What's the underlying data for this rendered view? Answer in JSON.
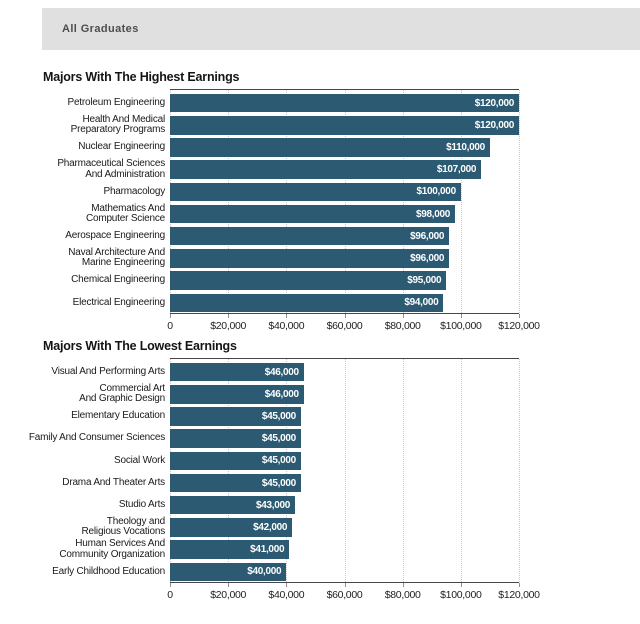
{
  "header": {
    "label": "All Graduates",
    "background": "#e0e0e0",
    "text_color": "#4d4d4d"
  },
  "colors": {
    "bar": "#2c5a72",
    "gridline": "#c9c9c9",
    "axis_line": "#454545",
    "value_text": "#ffffff"
  },
  "axis": {
    "max": 120000,
    "ticks": [
      {
        "label": "0",
        "value": 0
      },
      {
        "label": "$20,000",
        "value": 20000
      },
      {
        "label": "$40,000",
        "value": 40000
      },
      {
        "label": "$60,000",
        "value": 60000
      },
      {
        "label": "$80,000",
        "value": 80000
      },
      {
        "label": "$100,000",
        "value": 100000
      },
      {
        "label": "$120,000",
        "value": 120000
      }
    ]
  },
  "chart_data": [
    {
      "type": "bar",
      "orientation": "horizontal",
      "title": "Majors With The Highest Earnings",
      "xlim": [
        0,
        120000
      ],
      "grid": "vertical-dotted",
      "x_tick_labels": [
        "0",
        "$20,000",
        "$40,000",
        "$60,000",
        "$80,000",
        "$100,000",
        "$120,000"
      ],
      "categories": [
        "Petroleum Engineering",
        "Health And Medical Preparatory Programs",
        "Nuclear Engineering",
        "Pharmaceutical Sciences And Administration",
        "Pharmacology",
        "Mathematics And Computer Science",
        "Aerospace Engineering",
        "Naval Architecture And Marine Engineering",
        "Chemical Engineering",
        "Electrical Engineering"
      ],
      "values": [
        120000,
        120000,
        110000,
        107000,
        100000,
        98000,
        96000,
        96000,
        95000,
        94000
      ],
      "rows": [
        {
          "label": "Petroleum Engineering",
          "value": 120000,
          "value_label": "$120,000"
        },
        {
          "label": "Health And Medical\nPreparatory Programs",
          "value": 120000,
          "value_label": "$120,000"
        },
        {
          "label": "Nuclear Engineering",
          "value": 110000,
          "value_label": "$110,000"
        },
        {
          "label": "Pharmaceutical Sciences\nAnd Administration",
          "value": 107000,
          "value_label": "$107,000"
        },
        {
          "label": "Pharmacology",
          "value": 100000,
          "value_label": "$100,000"
        },
        {
          "label": "Mathematics And\nComputer Science",
          "value": 98000,
          "value_label": "$98,000"
        },
        {
          "label": "Aerospace Engineering",
          "value": 96000,
          "value_label": "$96,000"
        },
        {
          "label": "Naval Architecture And\nMarine Engineering",
          "value": 96000,
          "value_label": "$96,000"
        },
        {
          "label": "Chemical Engineering",
          "value": 95000,
          "value_label": "$95,000"
        },
        {
          "label": "Electrical Engineering",
          "value": 94000,
          "value_label": "$94,000"
        }
      ]
    },
    {
      "type": "bar",
      "orientation": "horizontal",
      "title": "Majors With The Lowest Earnings",
      "xlim": [
        0,
        120000
      ],
      "grid": "vertical-dotted",
      "x_tick_labels": [
        "0",
        "$20,000",
        "$40,000",
        "$60,000",
        "$80,000",
        "$100,000",
        "$120,000"
      ],
      "categories": [
        "Visual And Performing Arts",
        "Commercial Art And Graphic Design",
        "Elementary Education",
        "Family And Consumer Sciences",
        "Social Work",
        "Drama And Theater Arts",
        "Studio Arts",
        "Theology and Religious Vocations",
        "Human Services And Community Organization",
        "Early Childhood Education"
      ],
      "values": [
        46000,
        46000,
        45000,
        45000,
        45000,
        45000,
        43000,
        42000,
        41000,
        40000
      ],
      "rows": [
        {
          "label": "Visual And Performing Arts",
          "value": 46000,
          "value_label": "$46,000"
        },
        {
          "label": "Commercial Art\nAnd Graphic Design",
          "value": 46000,
          "value_label": "$46,000"
        },
        {
          "label": "Elementary Education",
          "value": 45000,
          "value_label": "$45,000"
        },
        {
          "label": "Family And Consumer Sciences",
          "value": 45000,
          "value_label": "$45,000"
        },
        {
          "label": "Social Work",
          "value": 45000,
          "value_label": "$45,000"
        },
        {
          "label": "Drama And Theater Arts",
          "value": 45000,
          "value_label": "$45,000"
        },
        {
          "label": "Studio Arts",
          "value": 43000,
          "value_label": "$43,000"
        },
        {
          "label": "Theology and\nReligious Vocations",
          "value": 42000,
          "value_label": "$42,000"
        },
        {
          "label": "Human Services And\nCommunity Organization",
          "value": 41000,
          "value_label": "$41,000"
        },
        {
          "label": "Early Childhood Education",
          "value": 40000,
          "value_label": "$40,000"
        }
      ]
    }
  ]
}
